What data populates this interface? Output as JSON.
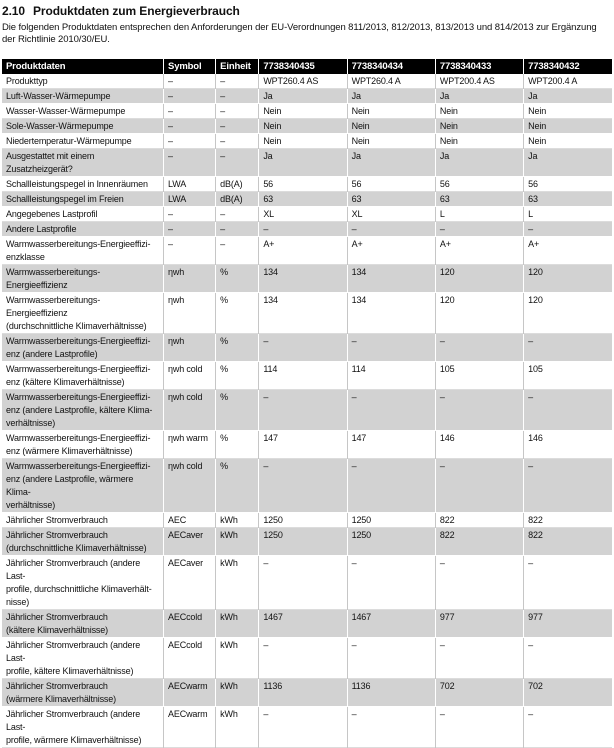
{
  "heading": {
    "number": "2.10",
    "title": "Produktdaten zum Energieverbrauch"
  },
  "intro": "Die folgenden Produktdaten entsprechen den Anforderungen der EU-Verordnungen 811/2013, 812/2013, 813/2013 und 814/2013 zur Ergänzung der Richtlinie 2010/30/EU.",
  "colors": {
    "header_bg": "#000000",
    "header_text": "#ffffff",
    "row_shade": "#d2d2d2"
  },
  "table": {
    "columns": [
      "Produktdaten",
      "Symbol",
      "Einheit",
      "7738340435",
      "7738340434",
      "7738340433",
      "7738340432"
    ],
    "rows": [
      {
        "label": "Produkttyp",
        "symbol": "–",
        "unit": "–",
        "values": [
          "WPT260.4 AS",
          "WPT260.4 A",
          "WPT200.4 AS",
          "WPT200.4 A"
        ]
      },
      {
        "label": "Luft-Wasser-Wärmepumpe",
        "symbol": "–",
        "unit": "–",
        "values": [
          "Ja",
          "Ja",
          "Ja",
          "Ja"
        ]
      },
      {
        "label": "Wasser-Wasser-Wärmepumpe",
        "symbol": "–",
        "unit": "–",
        "values": [
          "Nein",
          "Nein",
          "Nein",
          "Nein"
        ]
      },
      {
        "label": "Sole-Wasser-Wärmepumpe",
        "symbol": "–",
        "unit": "–",
        "values": [
          "Nein",
          "Nein",
          "Nein",
          "Nein"
        ]
      },
      {
        "label": "Niedertemperatur-Wärmepumpe",
        "symbol": "–",
        "unit": "–",
        "values": [
          "Nein",
          "Nein",
          "Nein",
          "Nein"
        ]
      },
      {
        "label": "Ausgestattet mit einem Zusatzheizgerät?",
        "symbol": "–",
        "unit": "–",
        "values": [
          "Ja",
          "Ja",
          "Ja",
          "Ja"
        ]
      },
      {
        "label": "Schallleistungspegel in Innenräumen",
        "symbol": "LWA",
        "unit": "dB(A)",
        "values": [
          "56",
          "56",
          "56",
          "56"
        ]
      },
      {
        "label": "Schallleistungspegel im Freien",
        "symbol": "LWA",
        "unit": "dB(A)",
        "values": [
          "63",
          "63",
          "63",
          "63"
        ]
      },
      {
        "label": "Angegebenes Lastprofil",
        "symbol": "–",
        "unit": "–",
        "values": [
          "XL",
          "XL",
          "L",
          "L"
        ]
      },
      {
        "label": "Andere Lastprofile",
        "symbol": "–",
        "unit": "–",
        "values": [
          "–",
          "–",
          "–",
          "–"
        ]
      },
      {
        "label": "Warmwasserbereitungs-Energieeffizi-\nenzklasse",
        "symbol": "–",
        "unit": "–",
        "values": [
          "A+",
          "A+",
          "A+",
          "A+"
        ]
      },
      {
        "label": "Warmwasserbereitungs-Energieeffizienz",
        "symbol": "ηwh",
        "unit": "%",
        "values": [
          "134",
          "134",
          "120",
          "120"
        ]
      },
      {
        "label": "Warmwasserbereitungs-Energieeffizienz\n(durchschnittliche Klimaverhältnisse)",
        "symbol": "ηwh",
        "unit": "%",
        "values": [
          "134",
          "134",
          "120",
          "120"
        ]
      },
      {
        "label": "Warmwasserbereitungs-Energieeffizi-\nenz (andere Lastprofile)",
        "symbol": "ηwh",
        "unit": "%",
        "values": [
          "–",
          "–",
          "–",
          "–"
        ]
      },
      {
        "label": "Warmwasserbereitungs-Energieeffizi-\nenz (kältere Klimaverhältnisse)",
        "symbol": "ηwh cold",
        "unit": "%",
        "values": [
          "114",
          "114",
          "105",
          "105"
        ]
      },
      {
        "label": "Warmwasserbereitungs-Energieeffizi-\nenz (andere Lastprofile, kältere Klima-\nverhältnisse)",
        "symbol": "ηwh cold",
        "unit": "%",
        "values": [
          "–",
          "–",
          "–",
          "–"
        ]
      },
      {
        "label": "Warmwasserbereitungs-Energieeffizi-\nenz (wärmere Klimaverhältnisse)",
        "symbol": "ηwh warm",
        "unit": "%",
        "values": [
          "147",
          "147",
          "146",
          "146"
        ]
      },
      {
        "label": "Warmwasserbereitungs-Energieeffizi-\nenz (andere Lastprofile, wärmere Klima-\nverhältnisse)",
        "symbol": "ηwh cold",
        "unit": "%",
        "values": [
          "–",
          "–",
          "–",
          "–"
        ]
      },
      {
        "label": "Jährlicher Stromverbrauch",
        "symbol": "AEC",
        "unit": "kWh",
        "values": [
          "1250",
          "1250",
          "822",
          "822"
        ]
      },
      {
        "label": "Jährlicher Stromverbrauch\n(durchschnittliche Klimaverhältnisse)",
        "symbol": "AECaver",
        "unit": "kWh",
        "values": [
          "1250",
          "1250",
          "822",
          "822"
        ]
      },
      {
        "label": "Jährlicher Stromverbrauch (andere Last-\nprofile, durchschnittliche Klimaverhält-\nnisse)",
        "symbol": "AECaver",
        "unit": "kWh",
        "values": [
          "–",
          "–",
          "–",
          "–"
        ]
      },
      {
        "label": "Jährlicher Stromverbrauch\n(kältere Klimaverhältnisse)",
        "symbol": "AECcold",
        "unit": "kWh",
        "values": [
          "1467",
          "1467",
          "977",
          "977"
        ]
      },
      {
        "label": "Jährlicher Stromverbrauch (andere Last-\nprofile, kältere Klimaverhältnisse)",
        "symbol": "AECcold",
        "unit": "kWh",
        "values": [
          "–",
          "–",
          "–",
          "–"
        ]
      },
      {
        "label": "Jährlicher Stromverbrauch\n(wärmere Klimaverhältnisse)",
        "symbol": "AECwarm",
        "unit": "kWh",
        "values": [
          "1136",
          "1136",
          "702",
          "702"
        ]
      },
      {
        "label": "Jährlicher Stromverbrauch (andere Last-\nprofile, wärmere Klimaverhältnisse)",
        "symbol": "AECwarm",
        "unit": "kWh",
        "values": [
          "–",
          "–",
          "–",
          "–"
        ]
      }
    ]
  }
}
